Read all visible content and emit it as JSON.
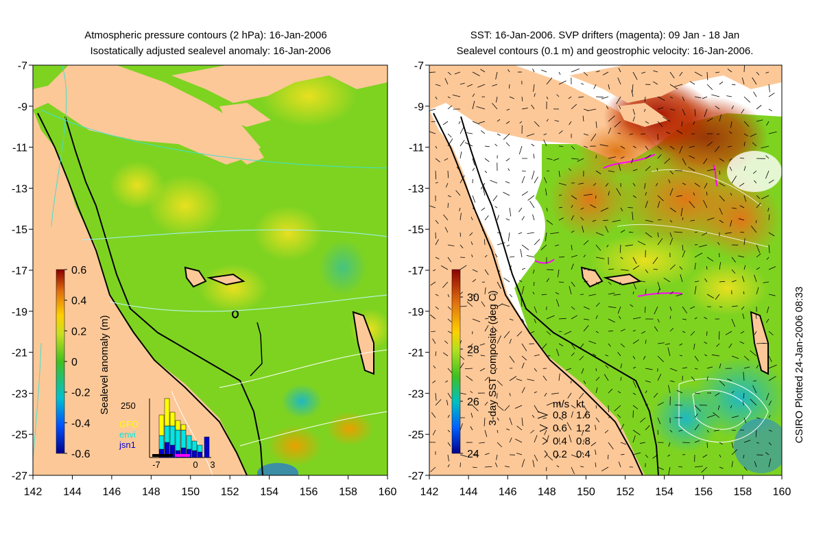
{
  "left_panel": {
    "title_line1": "Atmospheric pressure contours (2 hPa): 16-Jan-2006",
    "title_line2": "Isostatically adjusted sealevel anomaly: 16-Jan-2006",
    "colorbar_label": "Sealevel anomaly (m)",
    "colorbar_ticks": [
      "0.6",
      "0.4",
      "0.2",
      "0",
      "-0.2",
      "-0.4",
      "-0.6"
    ],
    "inset": {
      "y_tick": "250",
      "legend": [
        {
          "label": "GFO",
          "color": "#ffff00"
        },
        {
          "label": "envi",
          "color": "#00e5e5"
        },
        {
          "label": "jsn1",
          "color": "#0000cc"
        }
      ],
      "x_ticks": [
        "-7",
        "0",
        "3"
      ]
    }
  },
  "right_panel": {
    "title_line1": "SST: 16-Jan-2006. SVP drifters (magenta): 09 Jan - 18 Jan",
    "title_line2": "Sealevel contours (0.1 m) and geostrophic velocity: 16-Jan-2006.",
    "colorbar_label": "3-day SST composite (deg C)",
    "colorbar_ticks": [
      "30",
      "28",
      "26",
      "24"
    ],
    "velocity_legend": {
      "header_ms": "m/s",
      "header_kt": "kt",
      "rows": [
        {
          "ms": "0.8",
          "kt": "1.6"
        },
        {
          "ms": "0.6",
          "kt": "1.2"
        },
        {
          "ms": "0.4",
          "kt": "0.8"
        },
        {
          "ms": "0.2",
          "kt": "0.4"
        }
      ]
    }
  },
  "axes": {
    "y_ticks": [
      "-7",
      "-9",
      "-11",
      "-13",
      "-15",
      "-17",
      "-19",
      "-21",
      "-23",
      "-25",
      "-27"
    ],
    "x_ticks": [
      "142",
      "144",
      "146",
      "148",
      "150",
      "152",
      "154",
      "156",
      "158",
      "160"
    ]
  },
  "credit": "CSIRO Plotted 24-Jan-2006 08:33",
  "colors": {
    "land": "#fcc898",
    "ocean_mid": "#7ed321",
    "drifter": "#ff00ff",
    "pressure_contour": "#40e0d0"
  }
}
